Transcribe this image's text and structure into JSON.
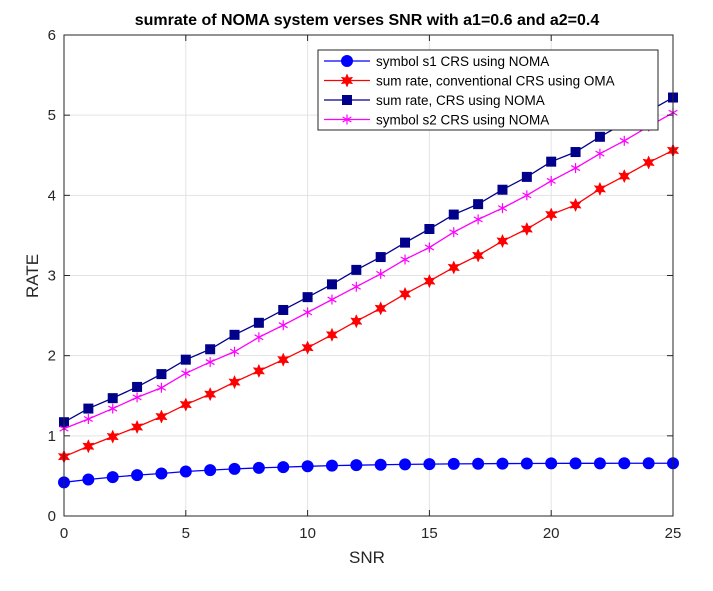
{
  "chart_data": {
    "type": "line",
    "title": "sumrate of NOMA system verses SNR with a1=0.6 and a2=0.4",
    "xlabel": "SNR",
    "ylabel": "RATE",
    "xlim": [
      0,
      25
    ],
    "ylim": [
      0,
      6
    ],
    "xticks": [
      0,
      5,
      10,
      15,
      20,
      25
    ],
    "yticks": [
      0,
      1,
      2,
      3,
      4,
      5,
      6
    ],
    "grid": true,
    "legend_position": "top-right",
    "x": [
      0,
      1,
      2,
      3,
      4,
      5,
      6,
      7,
      8,
      9,
      10,
      11,
      12,
      13,
      14,
      15,
      16,
      17,
      18,
      19,
      20,
      21,
      22,
      23,
      24,
      25
    ],
    "series": [
      {
        "name": "symbol s1 CRS using NOMA",
        "color": "#0000ff",
        "marker": "circle",
        "values": [
          0.42,
          0.455,
          0.485,
          0.51,
          0.53,
          0.555,
          0.572,
          0.588,
          0.6,
          0.61,
          0.62,
          0.628,
          0.634,
          0.639,
          0.644,
          0.647,
          0.65,
          0.652,
          0.654,
          0.655,
          0.656,
          0.657,
          0.657,
          0.658,
          0.658,
          0.658
        ]
      },
      {
        "name": "sum rate, conventional CRS using OMA",
        "color": "#ff0000",
        "marker": "star",
        "values": [
          0.74,
          0.87,
          0.99,
          1.11,
          1.24,
          1.39,
          1.52,
          1.67,
          1.81,
          1.95,
          2.1,
          2.26,
          2.43,
          2.59,
          2.77,
          2.93,
          3.1,
          3.25,
          3.43,
          3.58,
          3.76,
          3.88,
          4.08,
          4.24,
          4.41,
          4.56
        ]
      },
      {
        "name": "sum rate, CRS using NOMA",
        "color": "#00008b",
        "marker": "square",
        "values": [
          1.17,
          1.34,
          1.47,
          1.61,
          1.77,
          1.95,
          2.08,
          2.26,
          2.41,
          2.57,
          2.73,
          2.89,
          3.07,
          3.23,
          3.41,
          3.58,
          3.76,
          3.89,
          4.07,
          4.23,
          4.42,
          4.54,
          4.73,
          4.9,
          5.05,
          5.22
        ]
      },
      {
        "name": "symbol s2 CRS using NOMA",
        "color": "#ff00ff",
        "marker": "asterisk",
        "values": [
          1.09,
          1.21,
          1.34,
          1.48,
          1.6,
          1.78,
          1.92,
          2.05,
          2.23,
          2.38,
          2.54,
          2.7,
          2.86,
          3.02,
          3.2,
          3.35,
          3.54,
          3.7,
          3.84,
          4.0,
          4.18,
          4.34,
          4.52,
          4.68,
          4.86,
          5.03
        ]
      }
    ]
  }
}
